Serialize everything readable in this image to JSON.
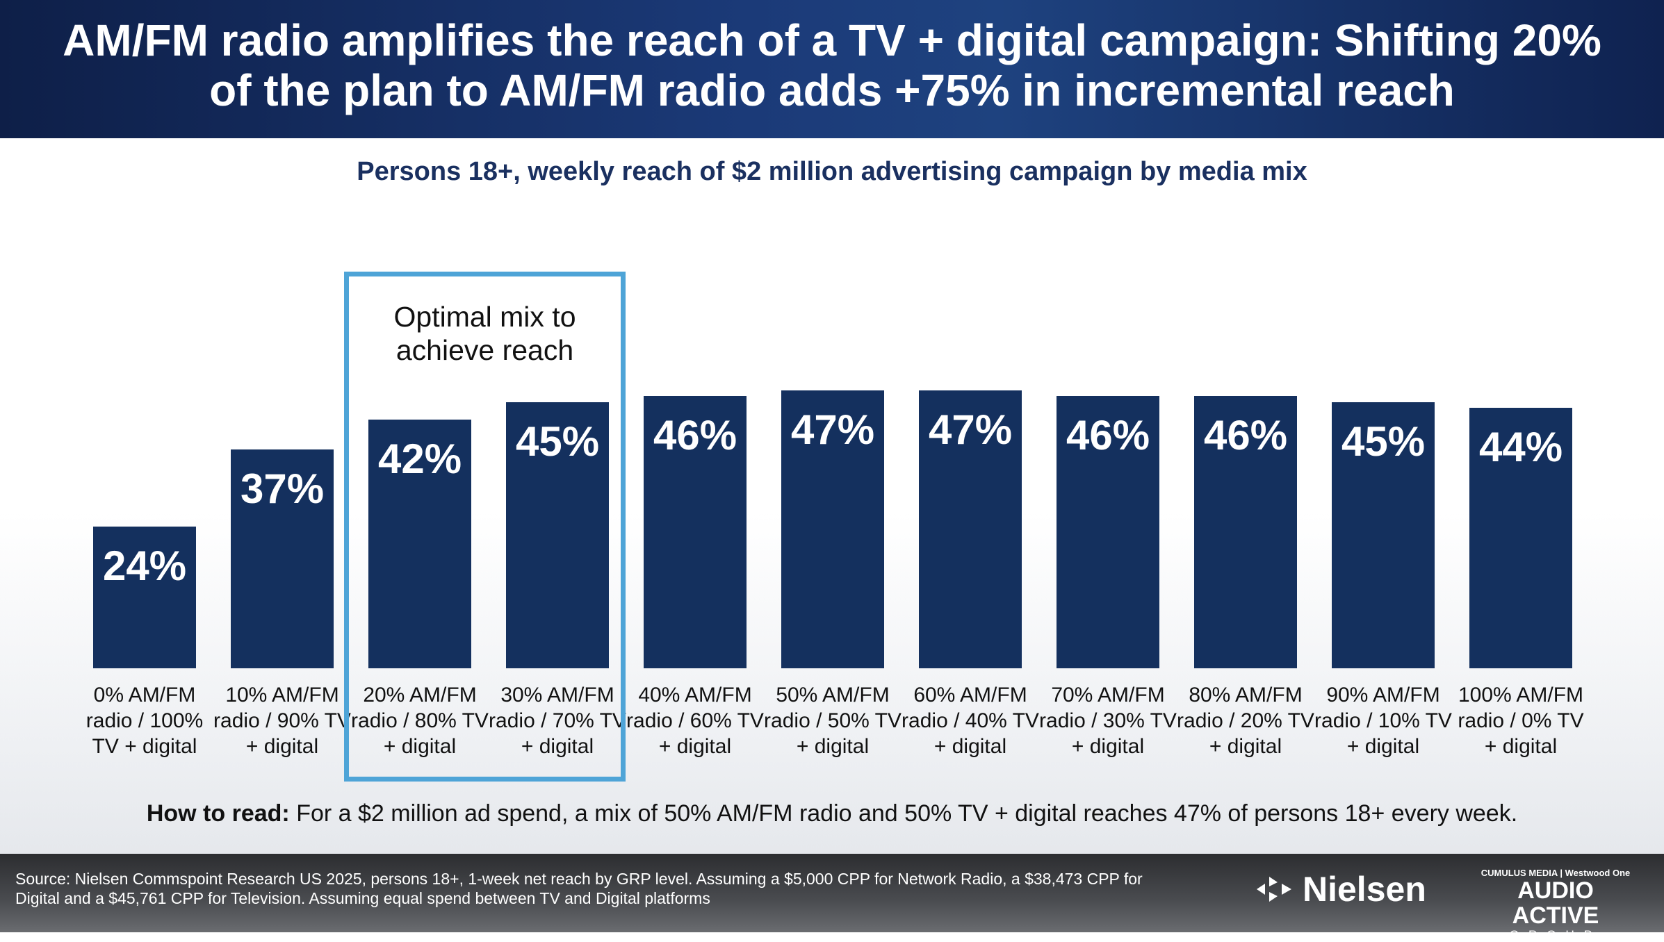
{
  "header": {
    "title_line1": "AM/FM radio amplifies the reach of a TV + digital campaign: Shifting 20%",
    "title_line2": "of the plan to AM/FM radio adds +75% in incremental reach"
  },
  "chart_data": {
    "type": "bar",
    "title": "Persons 18+, weekly reach of $2 million advertising campaign by media mix",
    "categories": [
      "0% AM/FM radio / 100% TV + digital",
      "10% AM/FM radio / 90% TV + digital",
      "20% AM/FM radio / 80% TV + digital",
      "30% AM/FM radio / 70% TV + digital",
      "40% AM/FM radio / 60% TV + digital",
      "50% AM/FM radio / 50% TV + digital",
      "60% AM/FM radio / 40% TV + digital",
      "70% AM/FM radio / 30% TV + digital",
      "80% AM/FM radio / 20% TV + digital",
      "90% AM/FM radio / 10% TV + digital",
      "100% AM/FM radio / 0% TV + digital"
    ],
    "values": [
      24,
      37,
      42,
      45,
      46,
      47,
      47,
      46,
      46,
      45,
      44
    ],
    "data_labels": [
      "24%",
      "37%",
      "42%",
      "45%",
      "46%",
      "47%",
      "47%",
      "46%",
      "46%",
      "45%",
      "44%"
    ],
    "ylim": [
      0,
      100
    ],
    "grid": false,
    "bar_color": "#14305e",
    "annotation": {
      "text": "Optimal mix to achieve reach",
      "highlighted_categories": [
        2,
        3
      ],
      "color": "#4ea4d7"
    }
  },
  "how_to_read": {
    "label": "How to read:",
    "text": " For a $2 million ad spend, a mix of 50% AM/FM radio and 50% TV + digital reaches 47% of persons 18+ every week."
  },
  "footer": {
    "source": "Source: Nielsen Commspoint Research US 2025, persons 18+, 1-week net reach by GRP level. Assuming a $5,000 CPP for Network Radio, a $38,473 CPP for Digital and a $45,761 CPP for Television. Assuming equal spend between TV and Digital platforms",
    "logo_nielsen": "Nielsen",
    "logo_cumulus": "CUMULUS MEDIA",
    "logo_westwood": "Westwood One",
    "logo_aag_main": "AUDIO ACTIVE",
    "logo_aag_sub": "GROUP"
  }
}
